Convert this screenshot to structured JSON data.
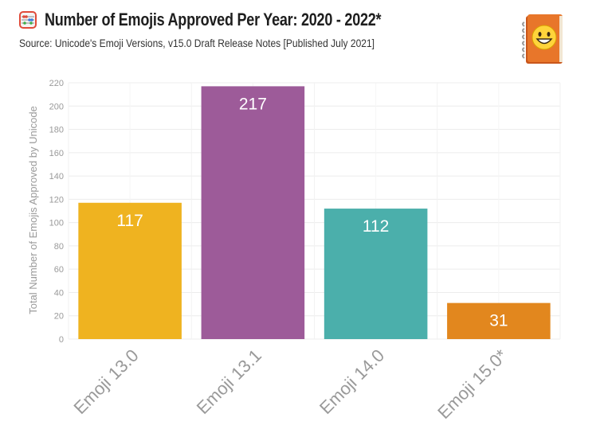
{
  "header": {
    "title": "Number of Emojis Approved Per Year: 2020 - 2022*",
    "subtitle": "Source: Unicode's Emoji Versions, v15.0 Draft Release Notes [Published July 2021]",
    "title_icon": "abacus-icon",
    "corner_icon": "emoji-book-icon"
  },
  "chart_data": {
    "type": "bar",
    "categories": [
      "Emoji 13.0",
      "Emoji 13.1",
      "Emoji 14.0",
      "Emoji 15.0*"
    ],
    "values": [
      117,
      217,
      112,
      31
    ],
    "data_labels": [
      "117",
      "217",
      "112",
      "31"
    ],
    "colors": [
      "#EFB320",
      "#9D5B99",
      "#4BAFAB",
      "#E2871E"
    ],
    "xlabel": "",
    "ylabel": "Total Number of Emojis Approved by Unicode",
    "ylim": [
      0,
      220
    ],
    "yticks": [
      0,
      20,
      40,
      60,
      80,
      100,
      120,
      140,
      160,
      180,
      200,
      220
    ],
    "grid": true,
    "legend": "none"
  }
}
